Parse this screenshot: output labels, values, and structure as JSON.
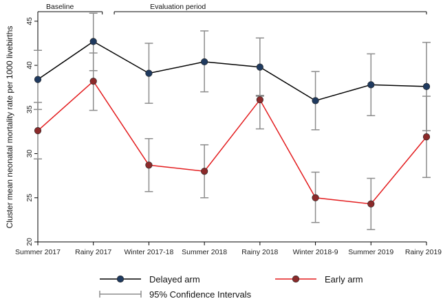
{
  "chart_data": {
    "type": "line",
    "ylabel": "Cluster mean neonatal mortality rate per 1000 livebirths",
    "xlabel": "",
    "categories": [
      "Summer 2017",
      "Rainy 2017",
      "Winter 2017-18",
      "Summer 2018",
      "Rainy 2018",
      "Winter 2018-9",
      "Summer 2019",
      "Rainy 2019"
    ],
    "yticks": [
      "20",
      "25",
      "30",
      "35",
      "40",
      "45"
    ],
    "ylim": [
      20,
      46
    ],
    "periods": [
      {
        "label": "Baseline",
        "from": 0,
        "to": 1
      },
      {
        "label": "Evaluation period",
        "from": 1.5,
        "to": 7
      }
    ],
    "series": [
      {
        "name": "Delayed arm",
        "color": "#000000",
        "marker_color": "#1f3a5f",
        "values": [
          38.4,
          42.7,
          39.1,
          40.4,
          39.8,
          36.0,
          37.8,
          37.6
        ],
        "ci_low": [
          35.0,
          39.4,
          35.7,
          37.0,
          36.5,
          32.7,
          34.3,
          32.6
        ],
        "ci_high": [
          41.7,
          45.9,
          42.5,
          43.9,
          43.1,
          39.3,
          41.3,
          42.6
        ]
      },
      {
        "name": "Early arm",
        "color": "#e31a1c",
        "marker_color": "#8b2a2a",
        "values": [
          32.6,
          38.2,
          28.7,
          28.0,
          36.1,
          25.0,
          24.3,
          31.9
        ],
        "ci_low": [
          29.4,
          34.9,
          25.7,
          25.0,
          32.8,
          22.2,
          21.4,
          27.3
        ],
        "ci_high": [
          35.8,
          41.4,
          31.7,
          31.0,
          36.6,
          27.9,
          27.2,
          36.5
        ]
      }
    ],
    "ci_label": "95% Confidence Intervals",
    "ci_color": "#8c8c8c",
    "grid": false,
    "legend": "bottom"
  }
}
